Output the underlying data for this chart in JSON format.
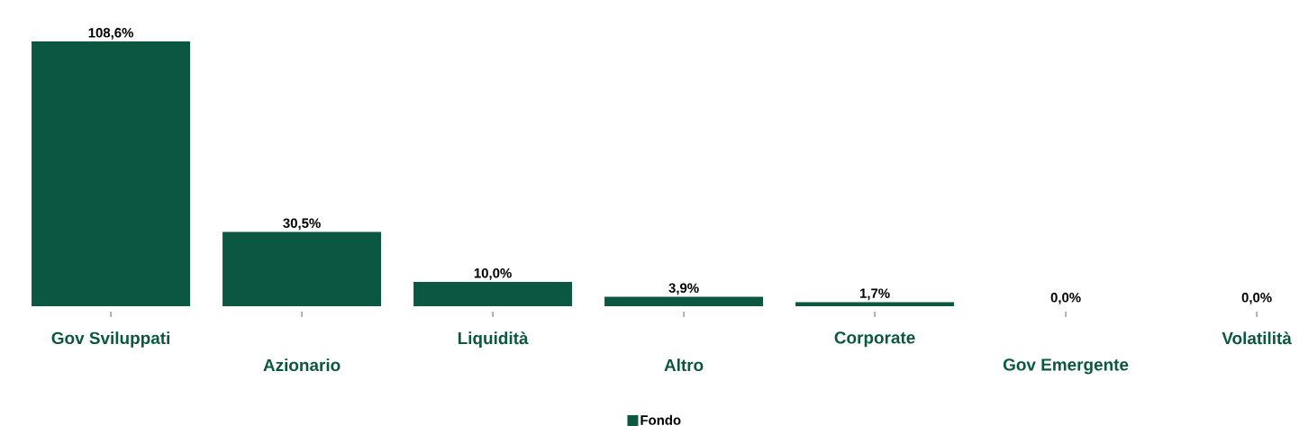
{
  "chart_data": {
    "type": "bar",
    "categories": [
      "Gov Sviluppati",
      "Azionario",
      "Liquidità",
      "Altro",
      "Corporate",
      "Gov Emergente",
      "Volatilità"
    ],
    "series": [
      {
        "name": "Fondo",
        "color": "#0b5741",
        "values": [
          108.6,
          30.5,
          10.0,
          3.9,
          1.7,
          0.0,
          0.0
        ],
        "value_labels": [
          "108,6%",
          "30,5%",
          "10,0%",
          "3,9%",
          "1,7%",
          "0,0%",
          "0,0%"
        ]
      }
    ],
    "tick_labels": "x",
    "legend": "bottom"
  }
}
